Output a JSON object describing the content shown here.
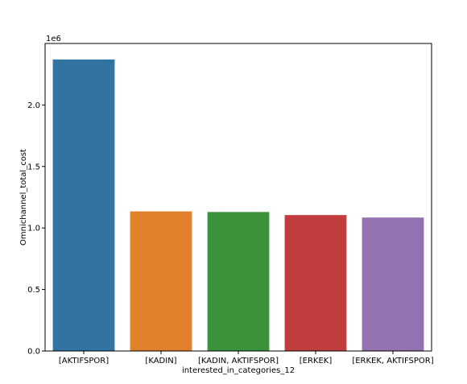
{
  "chart_data": {
    "type": "bar",
    "title": "",
    "xlabel": "interested_in_categories_12",
    "ylabel": "Omnichannel_total_cost",
    "offset_text": "1e6",
    "categories": [
      "[AKTIFSPOR]",
      "[KADIN]",
      "[KADIN, AKTIFSPOR]",
      "[ERKEK]",
      "[ERKEK, AKTIFSPOR]"
    ],
    "values": [
      2370000,
      1135000,
      1130000,
      1105000,
      1085000
    ],
    "colors": [
      "#3274a1",
      "#e1812c",
      "#3a923a",
      "#c03d3e",
      "#9372b2"
    ],
    "ylim": [
      0,
      2500000
    ],
    "yticks": [
      0,
      500000,
      1000000,
      1500000,
      2000000
    ],
    "ytick_labels": [
      "0.0",
      "0.5",
      "1.0",
      "1.5",
      "2.0"
    ],
    "grid": false,
    "legend": false
  }
}
